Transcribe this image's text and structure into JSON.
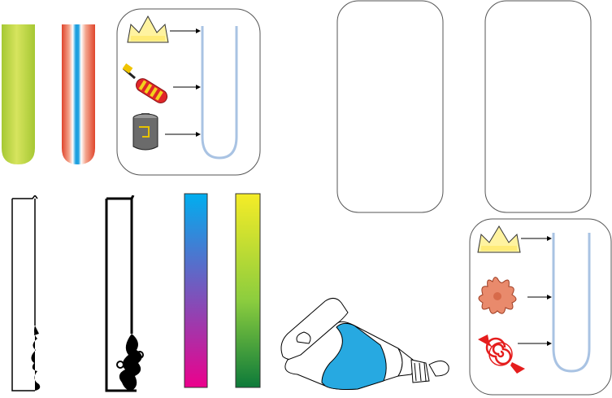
{
  "colors": {
    "green_tube": [
      "#9fc31f",
      "#d9e66a",
      "#9fc31f"
    ],
    "stripe_red": "#e3452c",
    "stripe_blue": "#1ca0e0",
    "tube_line": "#a9c3e3",
    "cyan_magenta_bar": [
      "#00aeef",
      "#ec008c"
    ],
    "yellow_green_bar": [
      "#f5ec27",
      "#0d7a3a"
    ],
    "paint_blue": "#27a9e1"
  },
  "icons": [
    "crown-icon",
    "screwdriver-icon",
    "battery-icon",
    "splat-icon",
    "candy-icon",
    "paint-tube-icon",
    "ornamental-frame-icon"
  ]
}
